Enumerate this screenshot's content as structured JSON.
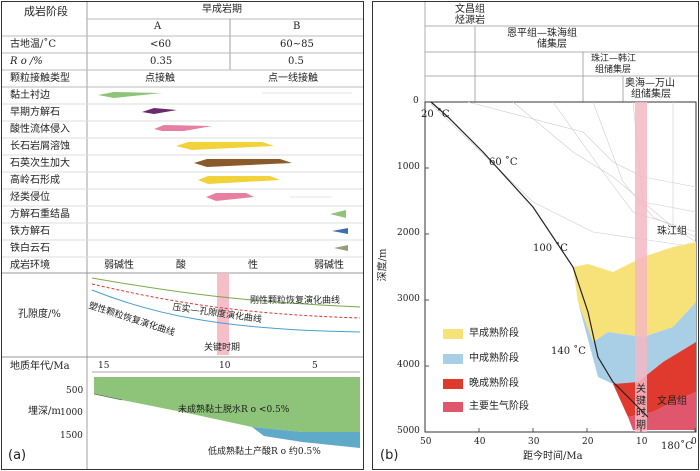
{
  "panel_a": {
    "tag": "(a)",
    "header": {
      "col_label": "成岩阶段",
      "period": "早成岩期",
      "sub_a": "A",
      "sub_b": "B"
    },
    "rows": [
      {
        "label": "古地温/˚C",
        "a": "<60",
        "b": "60~85"
      },
      {
        "label": "R o /%",
        "a": "0.35",
        "b": "0.5"
      },
      {
        "label": "颗粒接触类型",
        "a": "点接触",
        "b": "点一线接触"
      }
    ],
    "processes": [
      {
        "label": "黏土衬边",
        "color": "#8dc47a"
      },
      {
        "label": "早期方解石",
        "color": "#6b2a6b"
      },
      {
        "label": "酸性流体侵入",
        "color": "#e67fa0"
      },
      {
        "label": "长石岩屑溶蚀",
        "color": "#f2d23a"
      },
      {
        "label": "石英次生加大",
        "color": "#8a5a2b"
      },
      {
        "label": "高岭石形成",
        "color": "#f2d23a"
      },
      {
        "label": "烃类侵位",
        "color": "#e67fa0"
      },
      {
        "label": "方解石重结晶",
        "color": "#8dc47a"
      },
      {
        "label": "铁方解石",
        "color": "#3e6fb0"
      },
      {
        "label": "铁白云石",
        "color": "#9a9a78"
      }
    ],
    "environment": {
      "label": "成岩环境",
      "values": [
        "弱碱性",
        "酸",
        "性",
        "弱碱性"
      ]
    },
    "porosity": {
      "label": "孔隙度/%",
      "curve1": "刚性颗粒恢复演化曲线",
      "curve2": "压实—孔隙度演化曲线",
      "curve3": "塑性颗粒恢复演化曲线",
      "key_period": "关键时期"
    },
    "age": {
      "label": "地质年代/Ma",
      "ticks": [
        "15",
        "10",
        "5"
      ]
    },
    "depth": {
      "label": "埋深/m",
      "ticks": [
        "500",
        "1000",
        "1500"
      ],
      "band1": "未成熟黏土脱水R o <0.5%",
      "band2": "低成熟黏土产酸R o 约0.5%"
    }
  },
  "panel_b": {
    "tag": "(b)",
    "formations": [
      "文昌组",
      "烃源岩",
      "恩平组—珠海组",
      "储集层",
      "珠江—韩江",
      "组储集层",
      "奥海—万山",
      "组储集层"
    ],
    "isotherms": [
      "20 ˚C",
      "60 ˚C",
      "100 ˚C",
      "140 ˚C",
      "180˚C"
    ],
    "y_axis": {
      "label": "深度/m",
      "ticks": [
        "0",
        "1000",
        "2000",
        "3000",
        "4000",
        "5000"
      ]
    },
    "x_axis": {
      "label": "距今时间/Ma",
      "ticks": [
        "50",
        "40",
        "30",
        "20",
        "10",
        "0"
      ]
    },
    "labels": {
      "zhujiang": "珠江组",
      "wenchang": "文昌组",
      "key1": "关",
      "key2": "键",
      "key3": "时",
      "key4": "期"
    },
    "legend": [
      {
        "label": "早成熟阶段",
        "color": "#f7e27a"
      },
      {
        "label": "中成熟阶段",
        "color": "#a9cfe6"
      },
      {
        "label": "晚成熟阶段",
        "color": "#e03a2e"
      },
      {
        "label": "主要生气阶段",
        "color": "#e0566c"
      }
    ]
  }
}
